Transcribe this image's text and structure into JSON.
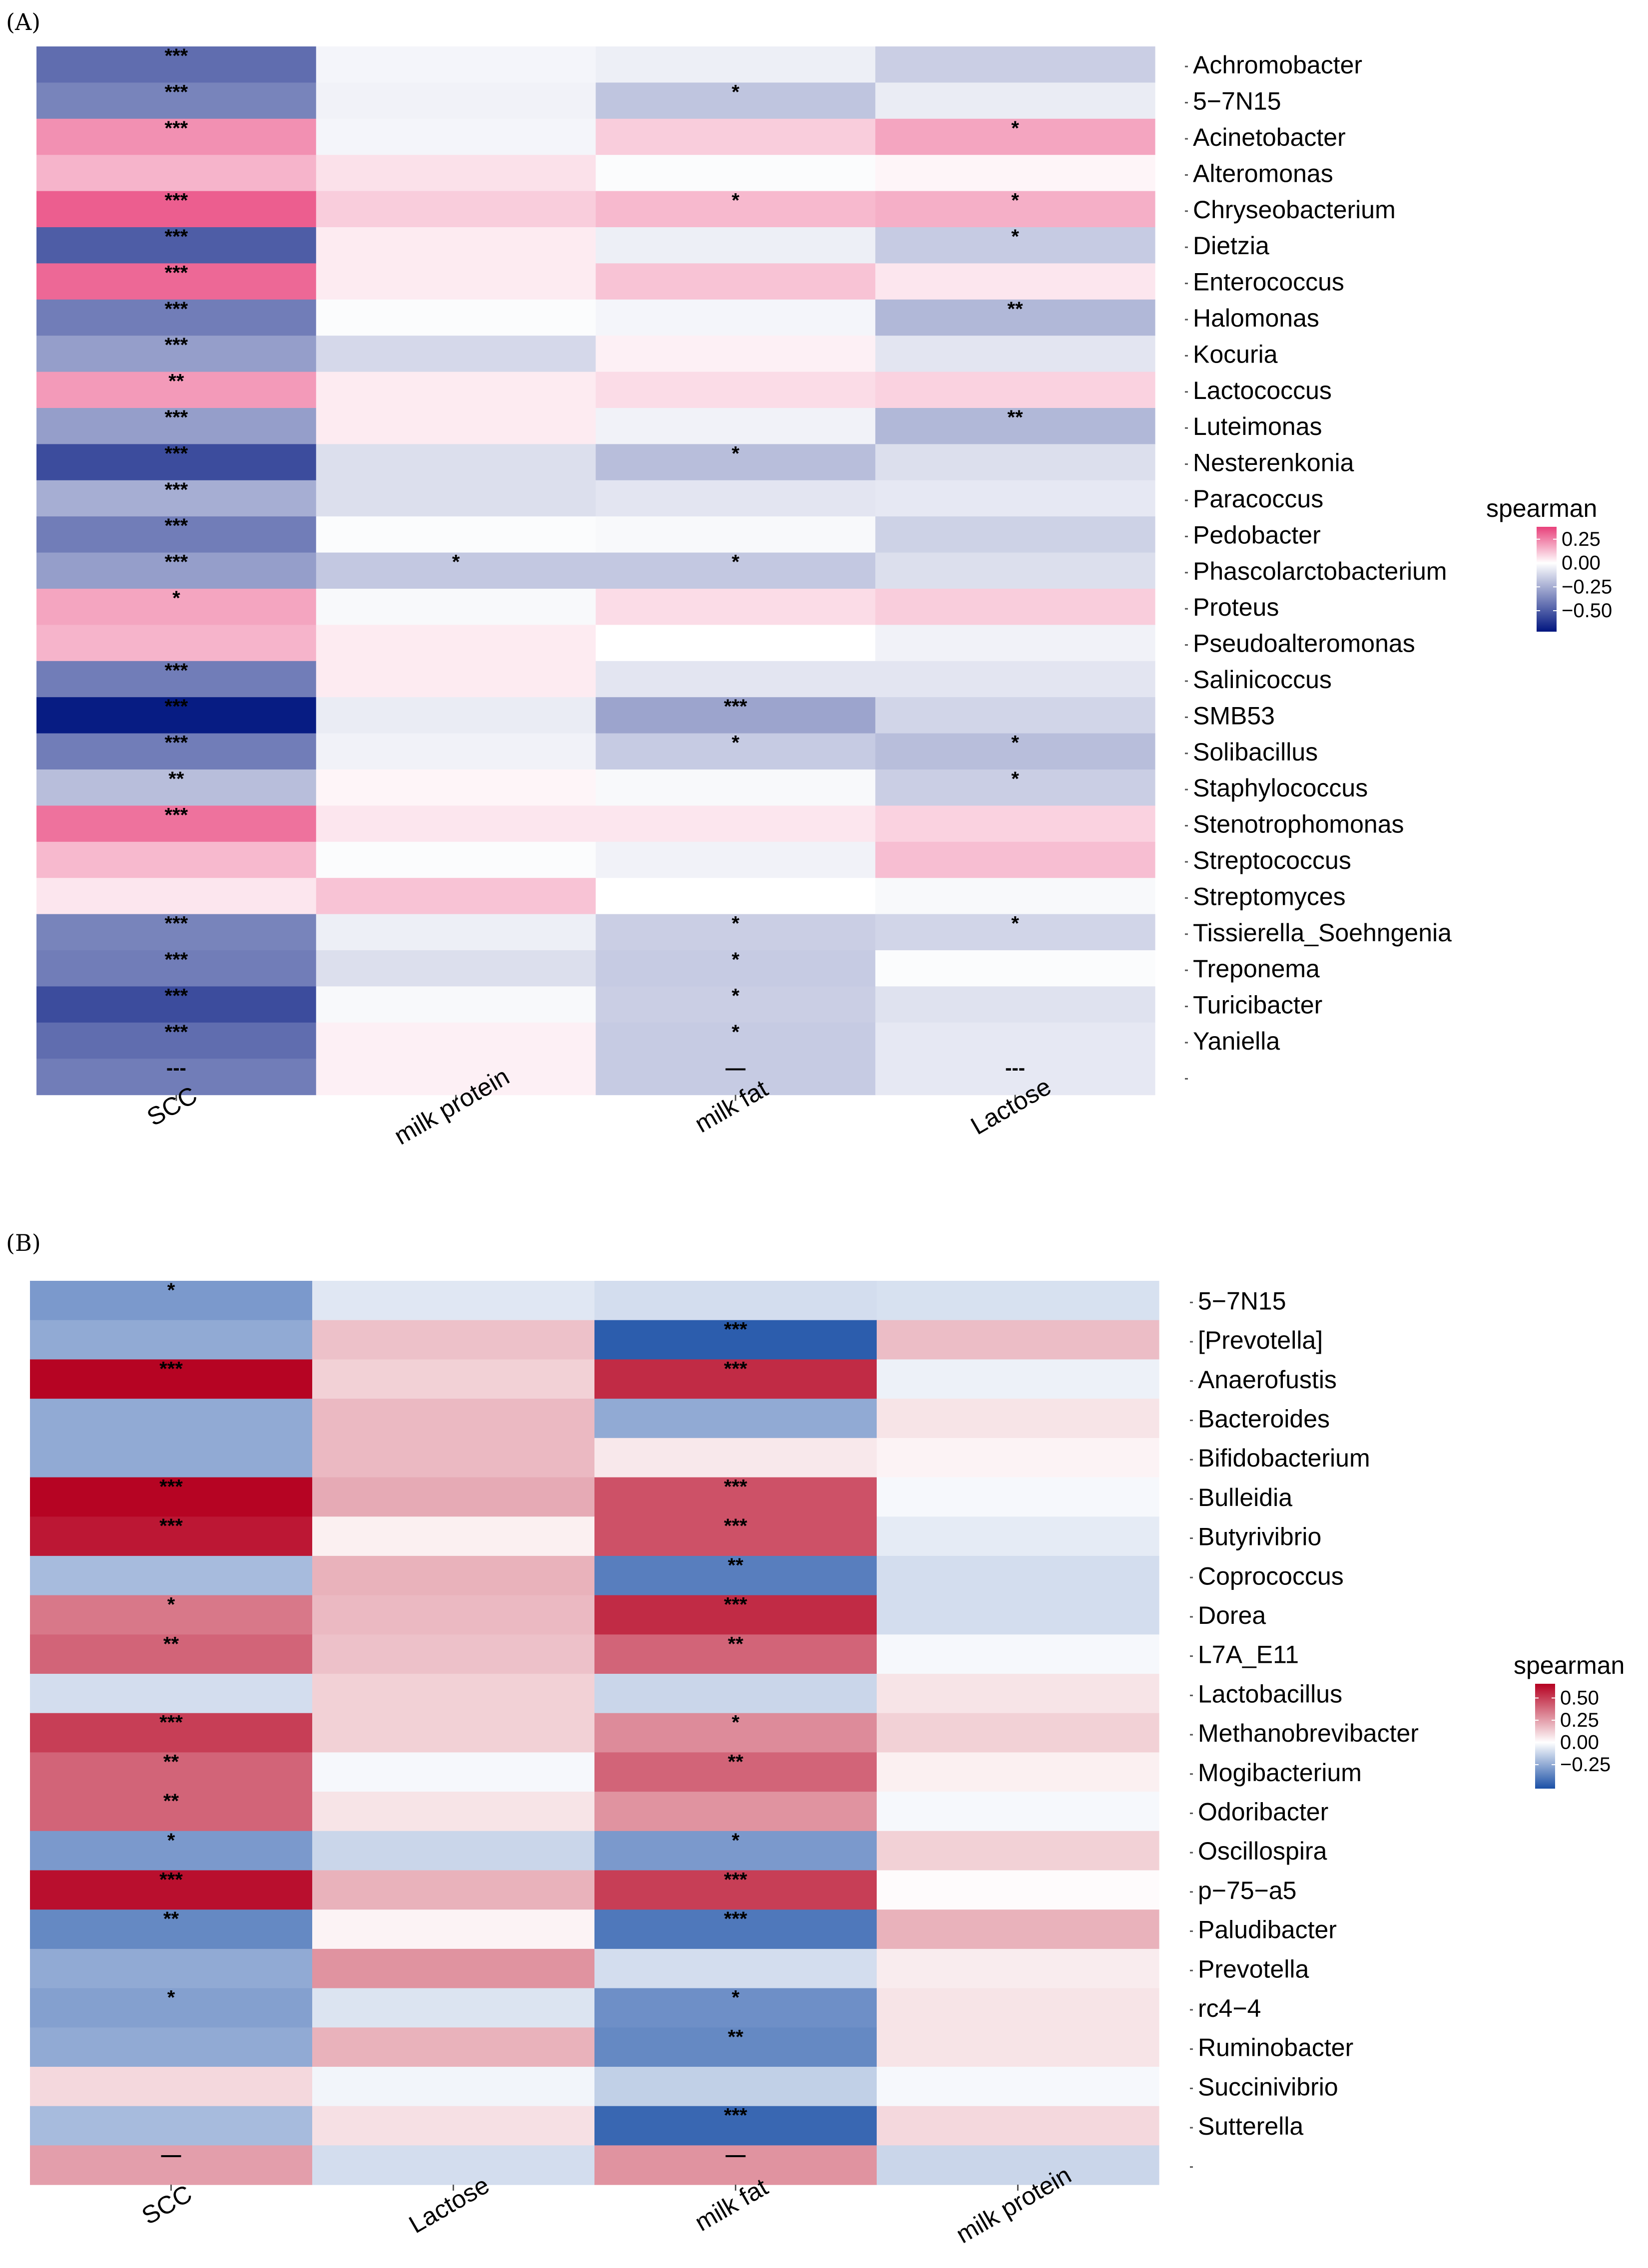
{
  "chart_data": [
    {
      "panel": "(A)",
      "type": "heatmap",
      "columns": [
        "SCC",
        "milk protein",
        "milk fat",
        "Lactose"
      ],
      "rows": [
        "Achromobacter",
        "5-7N15",
        "Acinetobacter",
        "Alteromonas",
        "Chryseobacterium",
        "Dietzia",
        "Enterococcus",
        "Halomonas",
        "Kocuria",
        "Lactococcus",
        "Luteimonas",
        "Nesterenkonia",
        "Paracoccus",
        "Pedobacter",
        "Phascolarctobacterium",
        "Proteus",
        "Pseudoalteromonas",
        "Salinicoccus",
        "SMB53",
        "Solibacillus",
        "Staphylococcus",
        "Stenotrophomonas",
        "Streptococcus",
        "Streptomyces",
        "Tissierella_Soehngenia",
        "Treponema",
        "Turicibacter",
        "Yaniella",
        ""
      ],
      "values": [
        [
          -0.45,
          -0.03,
          -0.05,
          -0.15
        ],
        [
          -0.38,
          -0.04,
          -0.18,
          -0.06
        ],
        [
          0.22,
          -0.03,
          0.1,
          0.18
        ],
        [
          0.15,
          0.06,
          -0.01,
          0.02
        ],
        [
          0.32,
          0.1,
          0.14,
          0.16
        ],
        [
          -0.5,
          0.04,
          -0.05,
          -0.16
        ],
        [
          0.3,
          0.04,
          0.12,
          0.05
        ],
        [
          -0.4,
          -0.01,
          -0.03,
          -0.22
        ],
        [
          -0.3,
          -0.12,
          0.03,
          -0.08
        ],
        [
          0.2,
          0.04,
          0.07,
          0.09
        ],
        [
          -0.3,
          0.04,
          -0.04,
          -0.22
        ],
        [
          -0.55,
          -0.1,
          -0.2,
          -0.1
        ],
        [
          -0.25,
          -0.1,
          -0.08,
          -0.07
        ],
        [
          -0.4,
          -0.01,
          -0.02,
          -0.14
        ],
        [
          -0.3,
          -0.17,
          -0.17,
          -0.1
        ],
        [
          0.18,
          -0.02,
          0.07,
          0.1
        ],
        [
          0.15,
          0.04,
          0.0,
          -0.04
        ],
        [
          -0.4,
          0.04,
          -0.08,
          -0.08
        ],
        [
          -0.7,
          -0.06,
          -0.28,
          -0.13
        ],
        [
          -0.4,
          -0.04,
          -0.16,
          -0.2
        ],
        [
          -0.2,
          0.02,
          -0.02,
          -0.15
        ],
        [
          0.28,
          0.05,
          0.05,
          0.09
        ],
        [
          0.14,
          -0.01,
          -0.04,
          0.13
        ],
        [
          0.05,
          0.12,
          0.0,
          -0.02
        ],
        [
          -0.38,
          -0.05,
          -0.15,
          -0.13
        ],
        [
          -0.4,
          -0.1,
          -0.16,
          -0.01
        ],
        [
          -0.55,
          -0.02,
          -0.15,
          -0.09
        ],
        [
          -0.45,
          0.03,
          -0.16,
          -0.07
        ],
        [
          -0.4,
          0.03,
          -0.16,
          -0.07
        ]
      ],
      "stars": [
        [
          "***",
          "",
          "",
          ""
        ],
        [
          "***",
          "",
          "*",
          ""
        ],
        [
          "***",
          "",
          "",
          "*"
        ],
        [
          "",
          "",
          "",
          ""
        ],
        [
          "***",
          "",
          "*",
          "*"
        ],
        [
          "***",
          "",
          "",
          "*"
        ],
        [
          "***",
          "",
          "",
          ""
        ],
        [
          "***",
          "",
          "",
          "**"
        ],
        [
          "***",
          "",
          "",
          ""
        ],
        [
          "**",
          "",
          "",
          ""
        ],
        [
          "***",
          "",
          "",
          "**"
        ],
        [
          "***",
          "",
          "*",
          ""
        ],
        [
          "***",
          "",
          "",
          ""
        ],
        [
          "***",
          "",
          "",
          ""
        ],
        [
          "***",
          "*",
          "*",
          ""
        ],
        [
          "*",
          "",
          "",
          ""
        ],
        [
          "",
          "",
          "",
          ""
        ],
        [
          "***",
          "",
          "",
          ""
        ],
        [
          "***",
          "",
          "***",
          ""
        ],
        [
          "***",
          "",
          "*",
          "*"
        ],
        [
          "**",
          "",
          "",
          "*"
        ],
        [
          "***",
          "",
          "",
          ""
        ],
        [
          "",
          "",
          "",
          ""
        ],
        [
          "",
          "",
          "",
          ""
        ],
        [
          "***",
          "",
          "*",
          "*"
        ],
        [
          "***",
          "",
          "*",
          ""
        ],
        [
          "***",
          "",
          "*",
          ""
        ],
        [
          "***",
          "",
          "*",
          ""
        ],
        [
          "---",
          "",
          "—",
          "---"
        ]
      ],
      "legend": {
        "title": "spearman",
        "ticks": [
          "0.25",
          "0.00",
          "−0.25",
          "−0.50"
        ],
        "tick_values": [
          0.25,
          0.0,
          -0.25,
          -0.5
        ],
        "range": [
          -0.72,
          0.38
        ],
        "colors": [
          "#00157f",
          "#ffffff",
          "#e8407a"
        ]
      }
    },
    {
      "panel": "(B)",
      "type": "heatmap",
      "columns": [
        "SCC",
        "Lactose",
        "milk fat",
        "milk protein"
      ],
      "rows": [
        "5-7N15",
        "[Prevotella]",
        "Anaerofustis",
        "Bacteroides",
        "Bifidobacterium",
        "Bulleidia",
        "Butyrivibrio",
        "Coprococcus",
        "Dorea",
        "L7A_E11",
        "Lactobacillus",
        "Methanobrevibacter",
        "Mogibacterium",
        "Odoribacter",
        "Oscillospira",
        "p-75-a5",
        "Paludibacter",
        "Prevotella",
        "rc4-4",
        "Ruminobacter",
        "Succinivibrio",
        "Sutterella",
        ""
      ],
      "values": [
        [
          -0.3,
          -0.07,
          -0.1,
          -0.09
        ],
        [
          -0.25,
          0.16,
          -0.48,
          0.17
        ],
        [
          0.65,
          0.12,
          0.55,
          -0.04
        ],
        [
          -0.25,
          0.18,
          -0.25,
          0.07
        ],
        [
          -0.25,
          0.18,
          0.06,
          0.03
        ],
        [
          0.65,
          0.22,
          0.45,
          -0.02
        ],
        [
          0.6,
          0.04,
          0.45,
          -0.06
        ],
        [
          -0.2,
          0.2,
          -0.38,
          -0.1
        ],
        [
          0.35,
          0.18,
          0.55,
          -0.1
        ],
        [
          0.4,
          0.16,
          0.4,
          -0.02
        ],
        [
          -0.1,
          0.12,
          -0.12,
          0.07
        ],
        [
          0.5,
          0.12,
          0.3,
          0.12
        ],
        [
          0.4,
          -0.02,
          0.4,
          0.04
        ],
        [
          0.4,
          0.07,
          0.28,
          -0.02
        ],
        [
          -0.3,
          -0.12,
          -0.3,
          0.12
        ],
        [
          0.62,
          0.2,
          0.5,
          0.01
        ],
        [
          -0.35,
          0.03,
          -0.4,
          0.2
        ],
        [
          -0.25,
          0.28,
          -0.1,
          0.05
        ],
        [
          -0.28,
          -0.08,
          -0.33,
          0.07
        ],
        [
          -0.25,
          0.2,
          -0.35,
          0.07
        ],
        [
          0.1,
          -0.03,
          -0.14,
          -0.02
        ],
        [
          -0.2,
          0.08,
          -0.45,
          0.1
        ],
        [
          0.25,
          -0.1,
          0.28,
          -0.12
        ]
      ],
      "stars": [
        [
          "*",
          "",
          "",
          ""
        ],
        [
          "",
          "",
          "***",
          ""
        ],
        [
          "***",
          "",
          "***",
          ""
        ],
        [
          "",
          "",
          "",
          ""
        ],
        [
          "",
          "",
          "",
          ""
        ],
        [
          "***",
          "",
          "***",
          ""
        ],
        [
          "***",
          "",
          "***",
          ""
        ],
        [
          "",
          "",
          "**",
          ""
        ],
        [
          "*",
          "",
          "***",
          ""
        ],
        [
          "**",
          "",
          "**",
          ""
        ],
        [
          "",
          "",
          "",
          ""
        ],
        [
          "***",
          "",
          "*",
          ""
        ],
        [
          "**",
          "",
          "**",
          ""
        ],
        [
          "**",
          "",
          "",
          ""
        ],
        [
          "*",
          "",
          "*",
          ""
        ],
        [
          "***",
          "",
          "***",
          ""
        ],
        [
          "**",
          "",
          "***",
          ""
        ],
        [
          "",
          "",
          "",
          ""
        ],
        [
          "*",
          "",
          "*",
          ""
        ],
        [
          "",
          "",
          "**",
          ""
        ],
        [
          "",
          "",
          "",
          ""
        ],
        [
          "",
          "",
          "***",
          ""
        ],
        [
          "—",
          "",
          "—",
          ""
        ]
      ],
      "legend": {
        "title": "spearman",
        "ticks": [
          "0.50",
          "0.25",
          "0.00",
          "−0.25"
        ],
        "tick_values": [
          0.5,
          0.25,
          0.0,
          -0.25
        ],
        "range": [
          -0.52,
          0.66
        ],
        "colors": [
          "#1a4fa6",
          "#ffffff",
          "#b50020"
        ]
      }
    }
  ]
}
